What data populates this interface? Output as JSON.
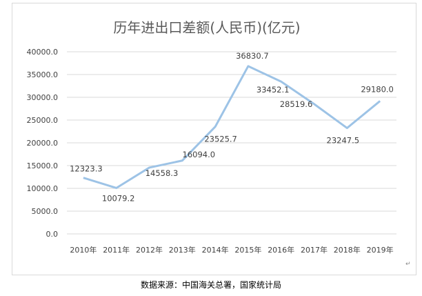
{
  "chart_data": {
    "type": "line",
    "title": "历年进出口差额(人民币)(亿元)",
    "categories": [
      "2010年",
      "2011年",
      "2012年",
      "2013年",
      "2014年",
      "2015年",
      "2016年",
      "2017年",
      "2018年",
      "2019年"
    ],
    "values": [
      12323.3,
      10079.2,
      14558.3,
      16094.0,
      23525.7,
      36830.7,
      33452.1,
      28519.6,
      23247.5,
      29180.0
    ],
    "data_labels": [
      "12323.3",
      "10079.2",
      "14558.3",
      "16094.0",
      "23525.7",
      "36830.7",
      "33452.1",
      "28519.6",
      "23247.5",
      "29180.0"
    ],
    "ylim": [
      0,
      40000
    ],
    "yticks": [
      "0.0",
      "5000.0",
      "10000.0",
      "15000.0",
      "20000.0",
      "25000.0",
      "30000.0",
      "35000.0",
      "40000.0"
    ],
    "grid": true,
    "legend": "none",
    "line_color": "#9dc3e6"
  },
  "source": "数据来源：中国海关总署，国家统计局",
  "paragraph_mark": "↵"
}
